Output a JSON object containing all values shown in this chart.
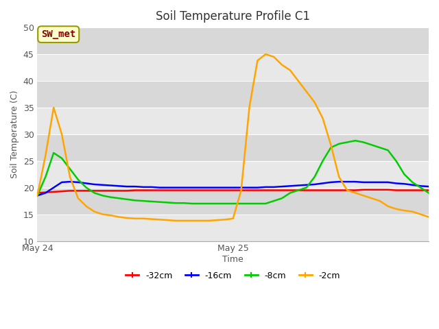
{
  "title": "Soil Temperature Profile C1",
  "xlabel": "Time",
  "ylabel": "Soil Temperature (C)",
  "ylim": [
    10,
    50
  ],
  "yticks": [
    10,
    15,
    20,
    25,
    30,
    35,
    40,
    45,
    50
  ],
  "plot_bg_color": "#e8e8e8",
  "fig_bg_color": "#ffffff",
  "annotation_text": "SW_met",
  "annotation_color": "#8b0000",
  "annotation_bg": "#ffffcc",
  "annotation_edge": "#999900",
  "series": {
    "-32cm": {
      "color": "#ff0000",
      "x": [
        0,
        1,
        2,
        3,
        4,
        5,
        6,
        7,
        8,
        9,
        10,
        11,
        12,
        13,
        14,
        15,
        16,
        17,
        18,
        19,
        20,
        21,
        22,
        23,
        24,
        25,
        26,
        27,
        28,
        29,
        30,
        31,
        32,
        33,
        34,
        35,
        36,
        37,
        38,
        39,
        40,
        41,
        42,
        43,
        44,
        45,
        46,
        47,
        48
      ],
      "y": [
        19.0,
        19.1,
        19.2,
        19.3,
        19.4,
        19.4,
        19.4,
        19.4,
        19.4,
        19.4,
        19.4,
        19.4,
        19.5,
        19.5,
        19.5,
        19.5,
        19.5,
        19.5,
        19.5,
        19.5,
        19.5,
        19.5,
        19.5,
        19.5,
        19.5,
        19.5,
        19.5,
        19.5,
        19.5,
        19.5,
        19.5,
        19.5,
        19.5,
        19.5,
        19.5,
        19.5,
        19.5,
        19.5,
        19.5,
        19.5,
        19.6,
        19.6,
        19.6,
        19.6,
        19.5,
        19.5,
        19.5,
        19.5,
        19.5
      ]
    },
    "-16cm": {
      "color": "#0000ff",
      "x": [
        0,
        1,
        2,
        3,
        4,
        5,
        6,
        7,
        8,
        9,
        10,
        11,
        12,
        13,
        14,
        15,
        16,
        17,
        18,
        19,
        20,
        21,
        22,
        23,
        24,
        25,
        26,
        27,
        28,
        29,
        30,
        31,
        32,
        33,
        34,
        35,
        36,
        37,
        38,
        39,
        40,
        41,
        42,
        43,
        44,
        45,
        46,
        47,
        48
      ],
      "y": [
        18.5,
        19.0,
        20.0,
        21.0,
        21.1,
        21.0,
        20.8,
        20.6,
        20.5,
        20.4,
        20.3,
        20.2,
        20.2,
        20.1,
        20.1,
        20.0,
        20.0,
        20.0,
        20.0,
        20.0,
        20.0,
        20.0,
        20.0,
        20.0,
        20.0,
        20.0,
        20.0,
        20.0,
        20.1,
        20.1,
        20.2,
        20.3,
        20.4,
        20.5,
        20.6,
        20.8,
        21.0,
        21.1,
        21.1,
        21.1,
        21.0,
        21.0,
        21.0,
        21.0,
        20.8,
        20.7,
        20.5,
        20.3,
        20.2
      ]
    },
    "-8cm": {
      "color": "#00cc00",
      "x": [
        0,
        1,
        2,
        3,
        4,
        5,
        6,
        7,
        8,
        9,
        10,
        11,
        12,
        13,
        14,
        15,
        16,
        17,
        18,
        19,
        20,
        21,
        22,
        23,
        24,
        25,
        26,
        27,
        28,
        29,
        30,
        31,
        32,
        33,
        34,
        35,
        36,
        37,
        38,
        39,
        40,
        41,
        42,
        43,
        44,
        45,
        46,
        47,
        48
      ],
      "y": [
        18.5,
        22.0,
        26.5,
        25.5,
        23.5,
        21.5,
        20.0,
        19.0,
        18.5,
        18.2,
        18.0,
        17.8,
        17.6,
        17.5,
        17.4,
        17.3,
        17.2,
        17.1,
        17.1,
        17.0,
        17.0,
        17.0,
        17.0,
        17.0,
        17.0,
        17.0,
        17.0,
        17.0,
        17.0,
        17.5,
        18.0,
        19.0,
        19.5,
        20.0,
        22.0,
        25.0,
        27.5,
        28.2,
        28.5,
        28.8,
        28.5,
        28.0,
        27.5,
        27.0,
        25.0,
        22.5,
        21.0,
        20.0,
        19.0
      ]
    },
    "-2cm": {
      "color": "#ffa500",
      "x": [
        0,
        1,
        2,
        3,
        4,
        5,
        6,
        7,
        8,
        9,
        10,
        11,
        12,
        13,
        14,
        15,
        16,
        17,
        18,
        19,
        20,
        21,
        22,
        23,
        24,
        25,
        26,
        27,
        28,
        29,
        30,
        31,
        32,
        33,
        34,
        35,
        36,
        37,
        38,
        39,
        40,
        41,
        42,
        43,
        44,
        45,
        46,
        47,
        48
      ],
      "y": [
        18.5,
        26.0,
        35.0,
        30.0,
        22.0,
        18.0,
        16.5,
        15.5,
        15.0,
        14.8,
        14.5,
        14.3,
        14.2,
        14.2,
        14.1,
        14.0,
        13.9,
        13.8,
        13.8,
        13.8,
        13.8,
        13.8,
        13.9,
        14.0,
        14.2,
        19.5,
        35.0,
        43.8,
        45.0,
        44.5,
        43.0,
        42.0,
        40.0,
        38.0,
        36.0,
        33.0,
        28.0,
        22.0,
        19.5,
        19.0,
        18.5,
        18.0,
        17.5,
        16.5,
        16.0,
        15.7,
        15.5,
        15.0,
        14.5
      ]
    }
  },
  "xtick_positions": [
    0,
    24
  ],
  "xtick_labels": [
    "May 24",
    "May 25"
  ],
  "legend_entries": [
    {
      "label": "-32cm",
      "color": "#ff0000"
    },
    {
      "label": "-16cm",
      "color": "#0000ff"
    },
    {
      "label": "-8cm",
      "color": "#00cc00"
    },
    {
      "label": "-2cm",
      "color": "#ffa500"
    }
  ],
  "band_colors": [
    "#e8e8e8",
    "#d8d8d8"
  ]
}
